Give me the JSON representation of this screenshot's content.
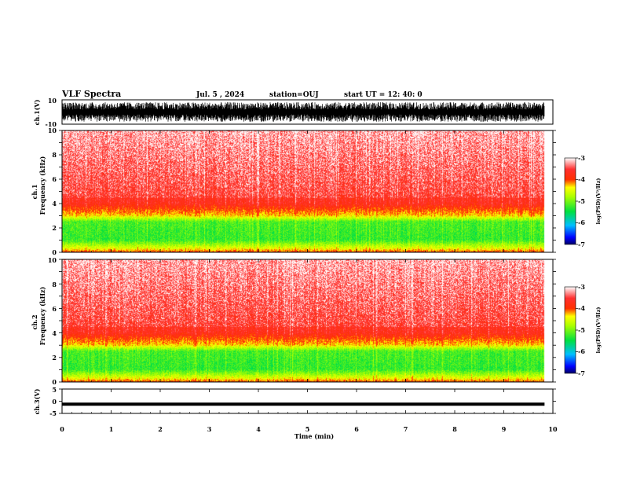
{
  "header": {
    "title": "VLF Spectra",
    "date": "Jul. 5 , 2024",
    "station": "station=OUJ",
    "start": "start UT = 12: 40: 0"
  },
  "colors": {
    "high": "#ff2020",
    "mid": "#ffff00",
    "low": "#22dd44",
    "min": "#000066"
  },
  "chart_data": [
    {
      "type": "line",
      "id": "ch1-waveform",
      "ylabel": "ch.1(V)",
      "ylim": [
        -10,
        10
      ],
      "yticks": [
        "10",
        "-10"
      ],
      "xlim": [
        0,
        10
      ]
    },
    {
      "type": "heatmap",
      "id": "ch1-spectrogram",
      "ylabel": "ch.1\nFrequency (kHz)",
      "ylabel_lines": [
        "ch.1",
        "Frequency (kHz)"
      ],
      "xlim": [
        0,
        10
      ],
      "ylim": [
        0,
        10
      ],
      "yticks": [
        "0",
        "2",
        "4",
        "6",
        "8",
        "10"
      ],
      "data_end_min": 9.83,
      "profile_khz": [
        0,
        0.3,
        1.0,
        2.5,
        3.0,
        4.0,
        10
      ],
      "profile_log_psd": [
        -4,
        -4.5,
        -5.3,
        -5.2,
        -4.3,
        -3.7,
        -3.3
      ],
      "colorbar": {
        "label": "log(PSD)(V²/Hz)",
        "range": [
          -7,
          -3
        ],
        "ticks": [
          "-3",
          "-4",
          "-5",
          "-6",
          "-7"
        ]
      }
    },
    {
      "type": "heatmap",
      "id": "ch2-spectrogram",
      "ylabel": "ch.2\nFrequency (kHz)",
      "ylabel_lines": [
        "ch.2",
        "Frequency (kHz)"
      ],
      "xlim": [
        0,
        10
      ],
      "ylim": [
        0,
        10
      ],
      "yticks": [
        "0",
        "2",
        "4",
        "6",
        "8",
        "10"
      ],
      "data_end_min": 9.83,
      "profile_khz": [
        0,
        0.3,
        1.0,
        2.5,
        3.0,
        4.0,
        10
      ],
      "profile_log_psd": [
        -4,
        -4.5,
        -5.3,
        -5.2,
        -4.3,
        -3.7,
        -3.3
      ],
      "colorbar": {
        "label": "log(PSD)(V²/Hz)",
        "range": [
          -7,
          -3
        ],
        "ticks": [
          "-3",
          "-4",
          "-5",
          "-6",
          "-7"
        ]
      }
    },
    {
      "type": "line",
      "id": "ch3-waveform",
      "ylabel": "ch.3(V)",
      "ylim": [
        -5,
        5
      ],
      "yticks": [
        "5",
        "0",
        "-5"
      ],
      "xlim": [
        0,
        10
      ],
      "constant_value": -1.2
    }
  ],
  "xaxis": {
    "label": "Time (min)",
    "ticks": [
      "0",
      "1",
      "2",
      "3",
      "4",
      "5",
      "6",
      "7",
      "8",
      "9",
      "10"
    ]
  }
}
